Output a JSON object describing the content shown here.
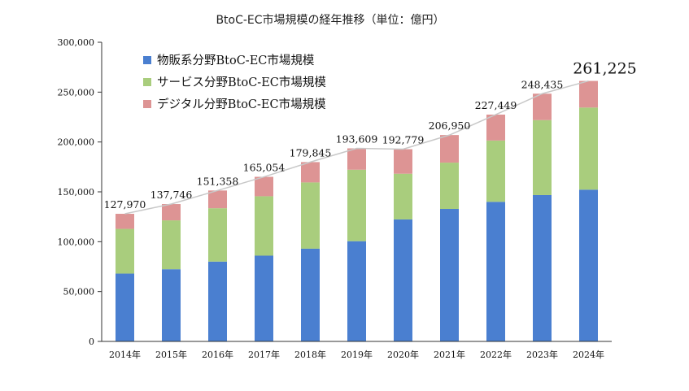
{
  "chart_data": {
    "type": "bar",
    "stacked": true,
    "title": "BtoC-EC市場規模の経年推移（単位：億円）",
    "categories": [
      "2014年",
      "2015年",
      "2016年",
      "2017年",
      "2018年",
      "2019年",
      "2020年",
      "2021年",
      "2022年",
      "2023年",
      "2024年"
    ],
    "series": [
      {
        "name": "物販系分野BtoC-EC市場規模",
        "color": "#4a7fd0",
        "values": [
          68043,
          72398,
          80043,
          86008,
          92992,
          100515,
          122333,
          132865,
          139997,
          146760,
          152194
        ]
      },
      {
        "name": "サービス分野BtoC-EC市場規模",
        "color": "#a9cd7d",
        "values": [
          44816,
          49014,
          53532,
          59568,
          66471,
          71672,
          45832,
          46424,
          61477,
          75169,
          82352
        ]
      },
      {
        "name": "デジタル分野BtoC-EC市場規模",
        "color": "#dd9494",
        "values": [
          15111,
          16334,
          17783,
          19478,
          20382,
          21422,
          24614,
          27661,
          25975,
          26506,
          26679
        ]
      }
    ],
    "totals": [
      127970,
      137746,
      151358,
      165054,
      179845,
      193609,
      192779,
      206950,
      227449,
      248435,
      261225
    ],
    "total_labels": [
      "127,970",
      "137,746",
      "151,358",
      "165,054",
      "179,845",
      "193,609",
      "192,779",
      "206,950",
      "227,449",
      "248,435",
      "261,225"
    ],
    "ylim": [
      0,
      300000
    ],
    "yticks": [
      0,
      50000,
      100000,
      150000,
      200000,
      250000,
      300000
    ],
    "ytick_labels": [
      "0",
      "50,000",
      "100,000",
      "150,000",
      "200,000",
      "250,000",
      "300,000"
    ],
    "legend_position": "top-left",
    "grid": false,
    "total_line": true,
    "colors": {
      "line": "#c8c8c8",
      "axis": "#333333"
    }
  }
}
